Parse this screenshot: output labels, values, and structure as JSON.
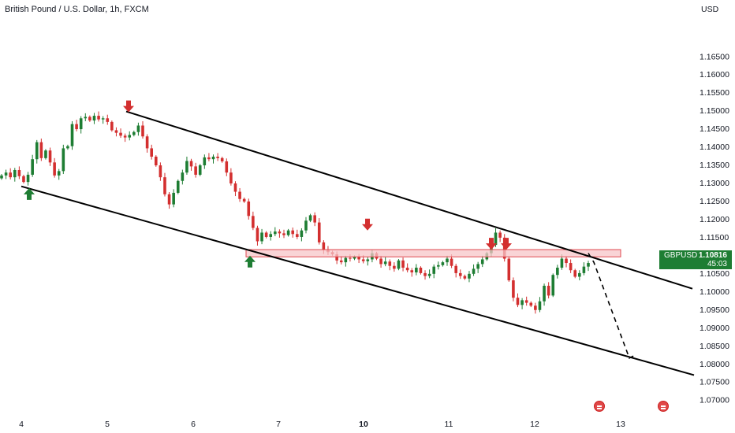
{
  "title": "British Pound / U.S. Dollar, 1h, FXCM",
  "currency_label": "USD",
  "badge": {
    "symbol": "GBPUSD",
    "price": "1.10816",
    "timer": "45:03",
    "color": "#1e7d33"
  },
  "icons": [
    "calendar-event-icon",
    "calendar-event-icon"
  ],
  "colors": {
    "up": "#1e7d33",
    "down": "#d32f2f",
    "zone_fill": "#f7c5c8",
    "zone_stroke": "#e0474f",
    "line": "#000000"
  },
  "chart_data": {
    "type": "candlestick",
    "ylim": [
      1.0695,
      1.1705
    ],
    "y_ticks": [
      "1.16500",
      "1.16000",
      "1.15500",
      "1.15000",
      "1.14500",
      "1.14000",
      "1.13500",
      "1.13000",
      "1.12500",
      "1.12000",
      "1.11500",
      "1.11000",
      "1.10500",
      "1.10000",
      "1.09500",
      "1.09000",
      "1.08500",
      "1.08000",
      "1.07500",
      "1.07000"
    ],
    "x_ticks": [
      "4",
      "5",
      "6",
      "7",
      "10",
      "11",
      "12",
      "13"
    ],
    "x_tick_bold": "10",
    "trendlines": [
      {
        "name": "upper-channel",
        "from": [
          "5",
          1.1497
        ],
        "to": [
          "13+",
          1.1007
        ]
      },
      {
        "name": "lower-channel",
        "from": [
          "4",
          1.129
        ],
        "to": [
          "13+",
          1.0768
        ]
      }
    ],
    "resistance_zone": {
      "low": 1.1095,
      "high": 1.1115
    },
    "projection": {
      "from": 1.1105,
      "to": 1.0815,
      "style": "dashed"
    },
    "closes": [
      1.132,
      1.1328,
      1.1315,
      1.1335,
      1.1318,
      1.1302,
      1.1322,
      1.1365,
      1.1412,
      1.1368,
      1.1389,
      1.1356,
      1.132,
      1.1332,
      1.1395,
      1.1401,
      1.1462,
      1.1448,
      1.1478,
      1.1482,
      1.1472,
      1.1485,
      1.1475,
      1.1478,
      1.1468,
      1.1445,
      1.1438,
      1.143,
      1.1425,
      1.1432,
      1.144,
      1.1458,
      1.1428,
      1.1395,
      1.1372,
      1.1348,
      1.1315,
      1.1268,
      1.124,
      1.1272,
      1.1305,
      1.1328,
      1.136,
      1.1345,
      1.1322,
      1.1348,
      1.137,
      1.1365,
      1.1372,
      1.1368,
      1.1359,
      1.1328,
      1.1298,
      1.1275,
      1.1255,
      1.1248,
      1.1208,
      1.1175,
      1.1138,
      1.1162,
      1.115,
      1.1158,
      1.1165,
      1.116,
      1.1155,
      1.1168,
      1.1158,
      1.115,
      1.1168,
      1.1195,
      1.121,
      1.119,
      1.1135,
      1.1115,
      1.1108,
      1.1102,
      1.1085,
      1.108,
      1.1092,
      1.109,
      1.1095,
      1.1088,
      1.1083,
      1.1088,
      1.1105,
      1.109,
      1.1075,
      1.1082,
      1.107,
      1.1062,
      1.1085,
      1.1065,
      1.1058,
      1.1052,
      1.1065,
      1.105,
      1.1042,
      1.1048,
      1.1068,
      1.1072,
      1.108,
      1.109,
      1.107,
      1.105,
      1.1042,
      1.1035,
      1.1048,
      1.1062,
      1.1075,
      1.1088,
      1.1105,
      1.1128,
      1.1162,
      1.1148,
      1.109,
      1.103,
      1.0982,
      1.0962,
      1.0975,
      1.0968,
      1.096,
      1.0948,
      1.0972,
      1.1015,
      1.0988,
      1.1045,
      1.1065,
      1.109,
      1.1078,
      1.1058,
      1.104,
      1.105,
      1.1068,
      1.1078
    ]
  },
  "markers": [
    {
      "name": "down-arrow-icon",
      "price": 1.151
    },
    {
      "name": "down-arrow-icon",
      "price": 1.1183
    },
    {
      "name": "down-arrow-icon",
      "price": 1.113
    },
    {
      "name": "down-arrow-icon",
      "price": 1.113
    },
    {
      "name": "up-arrow-icon",
      "price": 1.127
    },
    {
      "name": "up-arrow-icon",
      "price": 1.1083
    }
  ]
}
